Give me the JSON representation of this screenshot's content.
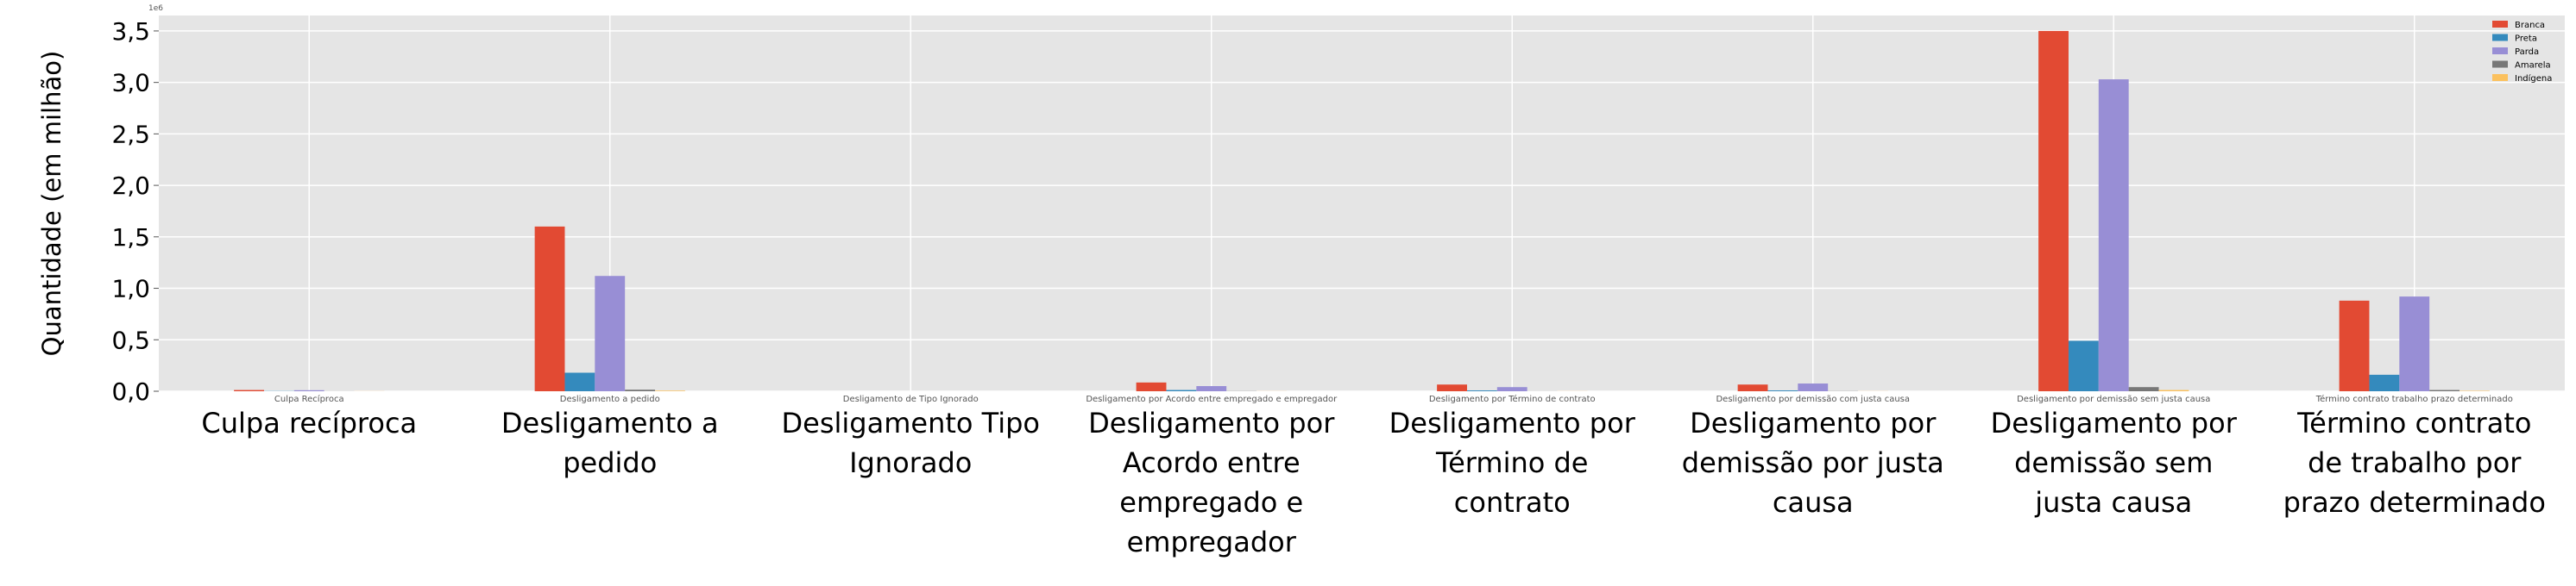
{
  "chart_data": {
    "type": "bar",
    "ylabel": "Quantidade (em milhão)",
    "offset_text": "1e6",
    "ylim": [
      0,
      3.65
    ],
    "yticks": [
      0.0,
      0.5,
      1.0,
      1.5,
      2.0,
      2.5,
      3.0,
      3.5
    ],
    "ytick_labels": [
      "0,0",
      "0,5",
      "1,0",
      "1,5",
      "2,0",
      "2,5",
      "3,0",
      "3,5"
    ],
    "grid": true,
    "legend_position": "top-right",
    "categories_small": [
      "Culpa Recíproca",
      "Desligamento a pedido",
      "Desligamento de Tipo Ignorado",
      "Desligamento por Acordo entre empregado e empregador",
      "Desligamento por Término de contrato",
      "Desligamento por demissão com justa causa",
      "Desligamento por demissão sem justa causa",
      "Término contrato trabalho prazo determinado"
    ],
    "categories": [
      [
        "Culpa recíproca"
      ],
      [
        "Desligamento a",
        "pedido"
      ],
      [
        "Desligamento Tipo",
        "Ignorado"
      ],
      [
        "Desligamento por",
        "Acordo entre",
        "empregado e",
        "empregador"
      ],
      [
        "Desligamento por",
        "Término de",
        "contrato"
      ],
      [
        "Desligamento por",
        "demissão por justa",
        "causa"
      ],
      [
        "Desligamento por",
        "demissão sem",
        "justa causa"
      ],
      [
        "Término contrato",
        "de trabalho por",
        "prazo determinado"
      ]
    ],
    "series": [
      {
        "name": "Branca",
        "color": "#E24A33",
        "values": [
          0.012,
          1.6,
          0.0,
          0.085,
          0.065,
          0.065,
          3.5,
          0.88
        ]
      },
      {
        "name": "Preta",
        "color": "#348ABD",
        "values": [
          0.002,
          0.18,
          0.0,
          0.012,
          0.008,
          0.008,
          0.49,
          0.16
        ]
      },
      {
        "name": "Parda",
        "color": "#988ED5",
        "values": [
          0.01,
          1.12,
          0.0,
          0.05,
          0.04,
          0.075,
          3.03,
          0.92
        ]
      },
      {
        "name": "Amarela",
        "color": "#777777",
        "values": [
          0.001,
          0.015,
          0.0,
          0.002,
          0.001,
          0.002,
          0.04,
          0.012
        ]
      },
      {
        "name": "Indígena",
        "color": "#FBC15E",
        "values": [
          0.001,
          0.006,
          0.0,
          0.001,
          0.001,
          0.001,
          0.012,
          0.004
        ]
      }
    ]
  }
}
